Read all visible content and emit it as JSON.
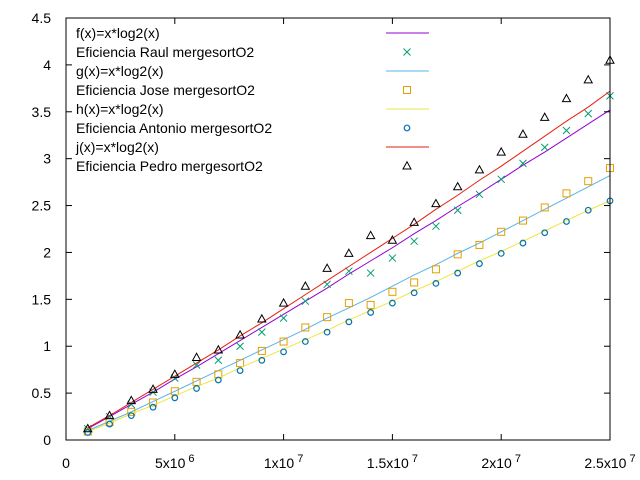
{
  "chart_data": {
    "type": "scatter",
    "title": "",
    "xlabel": "",
    "ylabel": "",
    "xlim": [
      0,
      25000000
    ],
    "ylim": [
      0,
      4.5
    ],
    "grid": false,
    "legend_position": "top-left",
    "x_ticks": [
      {
        "value": 0,
        "base": "0",
        "exp": ""
      },
      {
        "value": 5000000,
        "base": "5x10",
        "exp": "6"
      },
      {
        "value": 10000000,
        "base": "1x10",
        "exp": "7"
      },
      {
        "value": 15000000,
        "base": "1.5x10",
        "exp": "7"
      },
      {
        "value": 20000000,
        "base": "2x10",
        "exp": "7"
      },
      {
        "value": 25000000,
        "base": "2.5x10",
        "exp": "7"
      }
    ],
    "y_ticks": [
      {
        "value": 0,
        "label": "0"
      },
      {
        "value": 0.5,
        "label": "0.5"
      },
      {
        "value": 1,
        "label": "1"
      },
      {
        "value": 1.5,
        "label": "1.5"
      },
      {
        "value": 2,
        "label": "2"
      },
      {
        "value": 2.5,
        "label": "2.5"
      },
      {
        "value": 3,
        "label": "3"
      },
      {
        "value": 3.5,
        "label": "3.5"
      },
      {
        "value": 4,
        "label": "4"
      },
      {
        "value": 4.5,
        "label": "4.5"
      }
    ],
    "x": [
      1000000,
      2000000,
      3000000,
      4000000,
      5000000,
      6000000,
      7000000,
      8000000,
      9000000,
      10000000,
      11000000,
      12000000,
      13000000,
      14000000,
      15000000,
      16000000,
      17000000,
      18000000,
      19000000,
      20000000,
      21000000,
      22000000,
      23000000,
      24000000,
      25000000
    ],
    "series": [
      {
        "name": "f(x)=x*log2(x)",
        "kind": "line",
        "color": "#9400d3",
        "values": [
          0.12,
          0.25,
          0.38,
          0.51,
          0.65,
          0.78,
          0.92,
          1.06,
          1.2,
          1.34,
          1.48,
          1.62,
          1.77,
          1.91,
          2.05,
          2.2,
          2.34,
          2.49,
          2.63,
          2.78,
          2.93,
          3.07,
          3.22,
          3.37,
          3.52
        ]
      },
      {
        "name": "Eficiencia Raul mergesortO2",
        "kind": "points",
        "marker": "cross",
        "color": "#009e73",
        "values": [
          0.12,
          0.25,
          0.38,
          0.51,
          0.66,
          0.8,
          0.85,
          1.0,
          1.15,
          1.3,
          1.48,
          1.66,
          1.8,
          1.78,
          1.94,
          2.12,
          2.28,
          2.45,
          2.62,
          2.78,
          2.95,
          3.12,
          3.3,
          3.48,
          3.67
        ]
      },
      {
        "name": "g(x)=x*log2(x)",
        "kind": "line",
        "color": "#56b4e9",
        "values": [
          0.1,
          0.2,
          0.3,
          0.41,
          0.52,
          0.63,
          0.74,
          0.85,
          0.96,
          1.07,
          1.18,
          1.3,
          1.41,
          1.52,
          1.64,
          1.76,
          1.87,
          1.99,
          2.1,
          2.22,
          2.34,
          2.46,
          2.58,
          2.7,
          2.82
        ]
      },
      {
        "name": "Eficiencia Jose mergesortO2",
        "kind": "points",
        "marker": "square",
        "color": "#e69f00",
        "values": [
          0.09,
          0.19,
          0.3,
          0.4,
          0.52,
          0.62,
          0.7,
          0.82,
          0.95,
          1.05,
          1.2,
          1.31,
          1.46,
          1.44,
          1.58,
          1.68,
          1.82,
          1.98,
          2.08,
          2.22,
          2.34,
          2.48,
          2.63,
          2.76,
          2.9
        ]
      },
      {
        "name": "h(x)=x*log2(x)",
        "kind": "line",
        "color": "#f0e442",
        "values": [
          0.09,
          0.18,
          0.28,
          0.37,
          0.47,
          0.57,
          0.66,
          0.77,
          0.87,
          0.97,
          1.07,
          1.17,
          1.28,
          1.38,
          1.48,
          1.59,
          1.69,
          1.8,
          1.91,
          2.01,
          2.12,
          2.23,
          2.34,
          2.45,
          2.55
        ]
      },
      {
        "name": "Eficiencia Antonio mergesortO2",
        "kind": "points",
        "marker": "circle",
        "color": "#0072b2",
        "values": [
          0.08,
          0.17,
          0.26,
          0.35,
          0.45,
          0.55,
          0.64,
          0.74,
          0.85,
          0.94,
          1.05,
          1.15,
          1.26,
          1.36,
          1.46,
          1.57,
          1.67,
          1.78,
          1.88,
          1.99,
          2.1,
          2.21,
          2.33,
          2.45,
          2.55
        ]
      },
      {
        "name": "j(x)=x*log2(x)",
        "kind": "line",
        "color": "#e51e10",
        "values": [
          0.13,
          0.26,
          0.4,
          0.54,
          0.68,
          0.82,
          0.96,
          1.11,
          1.25,
          1.4,
          1.55,
          1.7,
          1.85,
          2.0,
          2.15,
          2.3,
          2.46,
          2.61,
          2.77,
          2.92,
          3.08,
          3.24,
          3.4,
          3.55,
          3.72
        ]
      },
      {
        "name": "Eficiencia Pedro mergesortO2",
        "kind": "points",
        "marker": "triangle",
        "color": "#000000",
        "values": [
          0.12,
          0.26,
          0.42,
          0.54,
          0.7,
          0.88,
          0.96,
          1.12,
          1.29,
          1.46,
          1.64,
          1.83,
          1.99,
          2.18,
          2.13,
          2.32,
          2.52,
          2.7,
          2.88,
          3.07,
          3.26,
          3.44,
          3.64,
          3.84,
          4.05
        ]
      }
    ]
  }
}
